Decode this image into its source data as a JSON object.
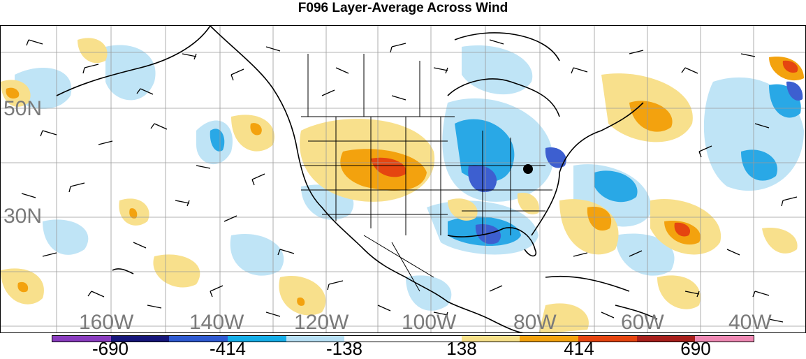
{
  "title": "F096 Layer-Average Across Wind",
  "lat_labels": [
    "50N",
    "30N"
  ],
  "lon_labels": [
    "160W",
    "140W",
    "120W",
    "100W",
    "80W",
    "60W",
    "40W"
  ],
  "colorbar": {
    "colors": [
      "#8a3dbf",
      "#16167a",
      "#2f5ad1",
      "#16aee8",
      "#b7e0f5",
      "#ffffff",
      "#ffffff",
      "#f7e18a",
      "#f3a20e",
      "#e54510",
      "#a8201c",
      "#f08ab5"
    ],
    "labels": [
      "-690",
      "-414",
      "-138",
      "138",
      "414",
      "690"
    ]
  }
}
